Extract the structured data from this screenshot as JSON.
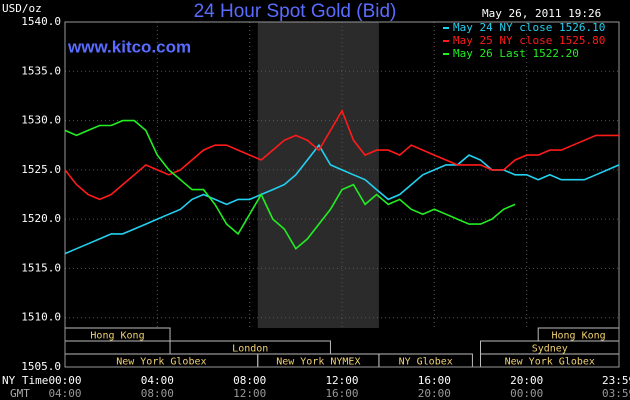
{
  "chart_data": {
    "type": "line",
    "title": "24 Hour Spot Gold (Bid)",
    "unit": "USD/oz",
    "timestamp": "May 26, 2011 19:26",
    "source": "www.kitco.com",
    "x_axis_label": "NY Time",
    "x2_axis_label": "GMT",
    "x": [
      0,
      0.5,
      1,
      1.5,
      2,
      2.5,
      3,
      3.5,
      4,
      4.5,
      5,
      5.5,
      6,
      6.5,
      7,
      7.5,
      8,
      8.5,
      9,
      9.5,
      10,
      10.5,
      11,
      11.5,
      12,
      12.5,
      13,
      13.5,
      14,
      14.5,
      15,
      15.5,
      16,
      16.5,
      17,
      17.5,
      18,
      18.5,
      19,
      19.5,
      20,
      20.5,
      21,
      21.5,
      22,
      22.5,
      23,
      23.5,
      24
    ],
    "xlim": [
      0,
      24
    ],
    "xticks": [
      {
        "value": 0,
        "label": "00:00"
      },
      {
        "value": 4,
        "label": "04:00"
      },
      {
        "value": 8,
        "label": "08:00"
      },
      {
        "value": 12,
        "label": "12:00"
      },
      {
        "value": 16,
        "label": "16:00"
      },
      {
        "value": 20,
        "label": "20:00"
      },
      {
        "value": 23.98,
        "label": "23:59"
      }
    ],
    "x2ticks": [
      {
        "value": 0,
        "label": "04:00"
      },
      {
        "value": 4,
        "label": "08:00"
      },
      {
        "value": 8,
        "label": "12:00"
      },
      {
        "value": 12,
        "label": "16:00"
      },
      {
        "value": 16,
        "label": "20:00"
      },
      {
        "value": 20,
        "label": "00:00"
      },
      {
        "value": 23.98,
        "label": "03:59"
      }
    ],
    "ylim": [
      1505,
      1540
    ],
    "yticks": [
      {
        "value": 1505,
        "label": "1505.0"
      },
      {
        "value": 1510,
        "label": "1510.0"
      },
      {
        "value": 1515,
        "label": "1515.0"
      },
      {
        "value": 1520,
        "label": "1520.0"
      },
      {
        "value": 1525,
        "label": "1525.0"
      },
      {
        "value": 1530,
        "label": "1530.0"
      },
      {
        "value": 1535,
        "label": "1535.0"
      },
      {
        "value": 1540,
        "label": "1540.0"
      }
    ],
    "grid": true,
    "legend": "top-right",
    "series": [
      {
        "name": "May 24 NY close 1526.10",
        "color": "#22d0f0",
        "values": [
          1516.5,
          1517,
          1517.5,
          1518,
          1518.5,
          1518.5,
          1519,
          1519.5,
          1520,
          1520.5,
          1521,
          1522,
          1522.5,
          1522,
          1521.5,
          1522,
          1522,
          1522.5,
          1523,
          1523.5,
          1524.5,
          1526,
          1527.5,
          1525.5,
          1525,
          1524.5,
          1524,
          1523,
          1522,
          1522.5,
          1523.5,
          1524.5,
          1525,
          1525.5,
          1525.5,
          1526.5,
          1526,
          1525,
          1525,
          1524.5,
          1524.5,
          1524,
          1524.5,
          1524,
          1524,
          1524,
          1524.5,
          1525,
          1525.5
        ]
      },
      {
        "name": "May 25 NY close 1525.80",
        "color": "#ff1a1a",
        "values": [
          1525,
          1523.5,
          1522.5,
          1522,
          1522.5,
          1523.5,
          1524.5,
          1525.5,
          1525,
          1524.5,
          1525,
          1526,
          1527,
          1527.5,
          1527.5,
          1527,
          1526.5,
          1526,
          1527,
          1528,
          1528.5,
          1528,
          1527,
          1529,
          1531,
          1528,
          1526.5,
          1527,
          1527,
          1526.5,
          1527.5,
          1527,
          1526.5,
          1526,
          1525.5,
          1525.5,
          1525.5,
          1525,
          1525,
          1526,
          1526.5,
          1526.5,
          1527,
          1527,
          1527.5,
          1528,
          1528.5,
          1528.5,
          1528.5
        ]
      },
      {
        "name": "May 26 Last 1522.20",
        "color": "#22ee22",
        "values": [
          1529,
          1528.5,
          1529,
          1529.5,
          1529.5,
          1530,
          1530,
          1529,
          1526.5,
          1525,
          1524,
          1523,
          1523,
          1521.5,
          1519.5,
          1518.5,
          1520.5,
          1522.5,
          1520,
          1519,
          1517,
          1518,
          1519.5,
          1521,
          1523,
          1523.5,
          1521.5,
          1522.5,
          1521.5,
          1522,
          1521,
          1520.5,
          1521,
          1520.5,
          1520,
          1519.5,
          1519.5,
          1520,
          1521,
          1521.5,
          null,
          null,
          null,
          null,
          null,
          null,
          null,
          null,
          null
        ]
      }
    ],
    "sessions": [
      [
        {
          "label": "Hong Kong",
          "start": 0,
          "end": 4.55
        },
        {
          "label": "Hong Kong",
          "start": 20.5,
          "end": 24
        }
      ],
      [
        {
          "label": "London",
          "start": 4.55,
          "end": 11.5
        },
        {
          "label": "Sydney",
          "start": 18,
          "end": 24
        }
      ],
      [
        {
          "label": "New York Globex",
          "start": 0,
          "end": 8.35
        },
        {
          "label": "New York NYMEX",
          "start": 8.35,
          "end": 13.6,
          "shade": true
        },
        {
          "label": "NY Globex",
          "start": 13.6,
          "end": 17.65
        },
        {
          "label": "New York Globex",
          "start": 18,
          "end": 24
        }
      ]
    ]
  }
}
